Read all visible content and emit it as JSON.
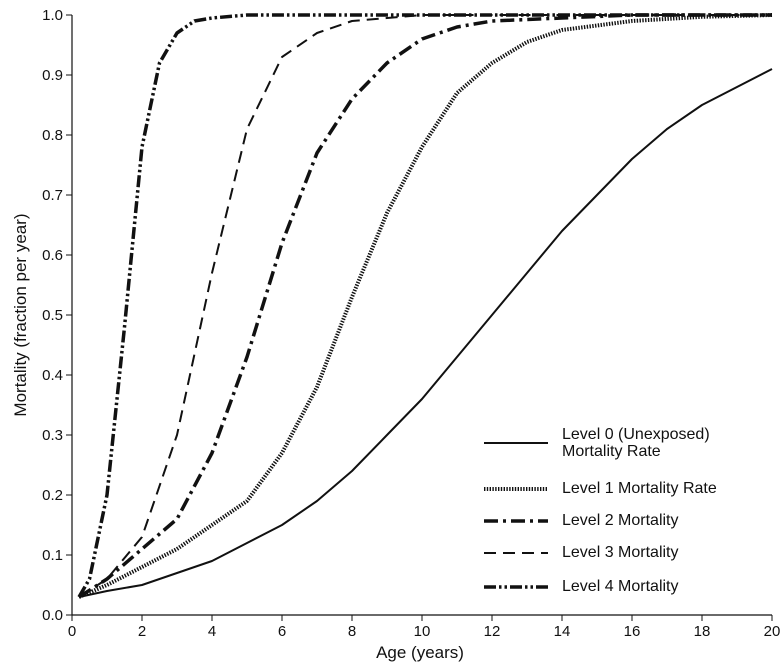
{
  "chart_data": {
    "type": "line",
    "x_label": "Age (years)",
    "y_label": "Mortality (fraction per year)",
    "xlim": [
      0,
      20
    ],
    "ylim": [
      0,
      1
    ],
    "xticks": [
      0,
      2,
      4,
      6,
      8,
      10,
      12,
      14,
      16,
      18,
      20
    ],
    "yticks": [
      {
        "value": 0,
        "label": "0.0"
      },
      0.1,
      0.2,
      0.3,
      0.4,
      0.5,
      0.6,
      0.7,
      0.8,
      0.9,
      {
        "value": 1,
        "label": "1.0"
      }
    ],
    "legend": "lower right",
    "series": [
      {
        "name": "Level 0 (Unexposed) Mortality Rate",
        "color": "#111111",
        "style": "solid",
        "x": [
          0.2,
          1,
          2,
          3,
          4,
          5,
          6,
          7,
          8,
          9,
          10,
          11,
          12,
          13,
          14,
          15,
          16,
          17,
          18,
          19,
          20
        ],
        "values": [
          0.03,
          0.04,
          0.05,
          0.07,
          0.09,
          0.12,
          0.15,
          0.19,
          0.24,
          0.3,
          0.36,
          0.43,
          0.5,
          0.57,
          0.64,
          0.7,
          0.76,
          0.81,
          0.85,
          0.88,
          0.91
        ]
      },
      {
        "name": "Level 1 Mortality Rate",
        "color": "#111111",
        "style": "dotted",
        "x": [
          0.2,
          1,
          2,
          3,
          4,
          5,
          6,
          7,
          8,
          9,
          10,
          11,
          12,
          13,
          14,
          16,
          18,
          20
        ],
        "values": [
          0.03,
          0.05,
          0.08,
          0.11,
          0.15,
          0.19,
          0.27,
          0.38,
          0.53,
          0.67,
          0.78,
          0.87,
          0.92,
          0.955,
          0.975,
          0.99,
          0.997,
          1.0
        ]
      },
      {
        "name": "Level 2 Mortality",
        "color": "#111111",
        "style": "dashdot",
        "x": [
          0.2,
          1,
          2,
          3,
          4,
          5,
          6,
          7,
          8,
          9,
          10,
          11,
          12,
          14,
          16,
          20
        ],
        "values": [
          0.03,
          0.06,
          0.11,
          0.16,
          0.27,
          0.43,
          0.62,
          0.77,
          0.86,
          0.92,
          0.96,
          0.98,
          0.99,
          0.995,
          1.0,
          1.0
        ]
      },
      {
        "name": "Level 3 Mortality",
        "color": "#111111",
        "style": "dashed",
        "x": [
          0.2,
          1,
          2,
          3,
          4,
          5,
          6,
          7,
          8,
          10,
          20
        ],
        "values": [
          0.03,
          0.06,
          0.13,
          0.3,
          0.57,
          0.81,
          0.93,
          0.97,
          0.99,
          1.0,
          1.0
        ]
      },
      {
        "name": "Level 4 Mortality",
        "color": "#111111",
        "style": "dashdotdot",
        "x": [
          0.2,
          0.5,
          1,
          1.5,
          2,
          2.5,
          3,
          3.5,
          4,
          5,
          20
        ],
        "values": [
          0.03,
          0.06,
          0.2,
          0.48,
          0.78,
          0.92,
          0.97,
          0.99,
          0.995,
          1.0,
          1.0
        ]
      }
    ]
  }
}
